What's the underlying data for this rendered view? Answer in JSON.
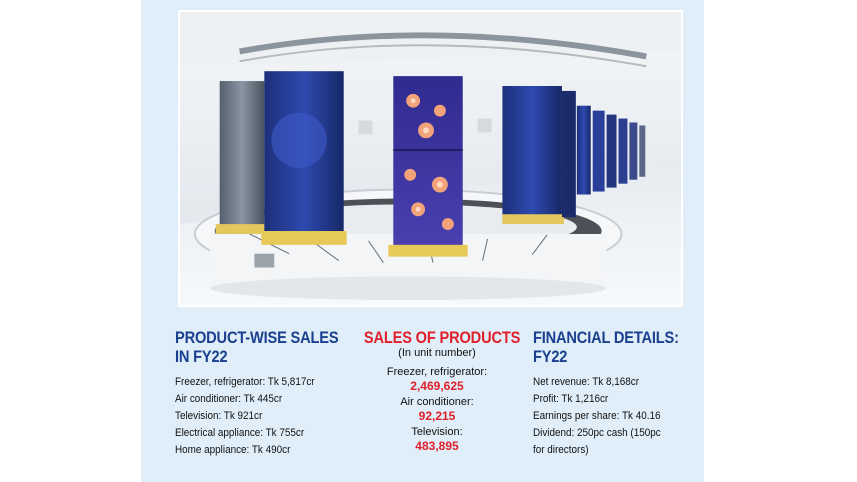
{
  "left_panel": {
    "title_line1": "PRODUCT-WISE SALES",
    "title_line2": "IN FY22",
    "items": [
      "Freezer, refrigerator: Tk 5,817cr",
      "Air conditioner: Tk 445cr",
      "Television: Tk 921cr",
      "Electrical appliance: Tk 755cr",
      "Home appliance: Tk 490cr"
    ]
  },
  "middle_panel": {
    "title": "SALES OF PRODUCTS",
    "subtitle": "(In unit number)",
    "items": [
      {
        "label": "Freezer, refrigerator:",
        "value": "2,469,625"
      },
      {
        "label": "Air conditioner:",
        "value": "92,215"
      },
      {
        "label": "Television:",
        "value": "483,895"
      }
    ]
  },
  "right_panel": {
    "title_line1": "FINANCIAL DETAILS:",
    "title_line2": "FY22",
    "items": [
      "Net revenue: Tk 8,168cr",
      "Profit: Tk 1,216cr",
      "Earnings per share: Tk 40.16",
      "Dividend: 250pc cash (150pc",
      "for directors)"
    ]
  },
  "colors": {
    "panel_bg": "#dfeef9",
    "heading_blue": "#1b3f8f",
    "heading_red": "#e0202a"
  },
  "photo": {
    "subject": "refrigerator-assembly-line-photo"
  }
}
